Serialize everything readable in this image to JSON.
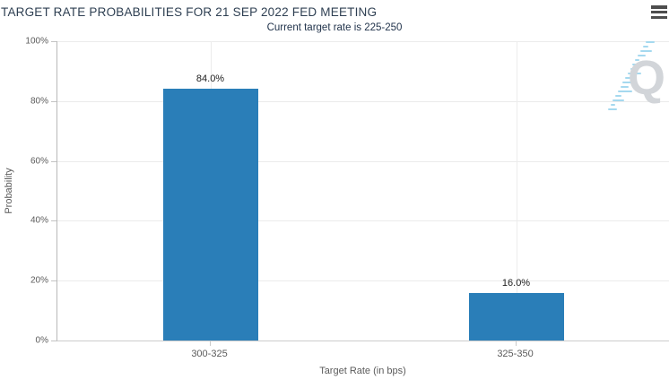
{
  "header": {
    "title": "TARGET RATE PROBABILITIES FOR 21 SEP 2022 FED MEETING",
    "subtitle": "Current target rate is 225-250",
    "menu_icon": "hamburger-menu"
  },
  "watermark": {
    "letter": "Q"
  },
  "chart_data": {
    "type": "bar",
    "categories": [
      "300-325",
      "325-350"
    ],
    "values": [
      84.0,
      16.0
    ],
    "value_labels": [
      "84.0%",
      "16.0%"
    ],
    "title": "TARGET RATE PROBABILITIES FOR 21 SEP 2022 FED MEETING",
    "subtitle": "Current target rate is 225-250",
    "xlabel": "Target Rate (in bps)",
    "ylabel": "Probability",
    "ylim": [
      0,
      100
    ],
    "yticks": [
      0,
      20,
      40,
      60,
      80,
      100
    ],
    "ytick_labels": [
      "0%",
      "20%",
      "40%",
      "60%",
      "80%",
      "100%"
    ],
    "grid": true,
    "legend": false,
    "bar_color": "#2a7eb8"
  },
  "colors": {
    "title_text": "#2e3f52",
    "subtitle_text": "#22344c",
    "axis_text": "#5b5b5b",
    "bar": "#2a7eb8",
    "gridline": "#ebebeb",
    "axis_line": "#c3c3c3",
    "menu_icon": "#4d4d4d",
    "watermark_gray": "#d2d5d9",
    "watermark_blue": "#a5d9ef"
  }
}
